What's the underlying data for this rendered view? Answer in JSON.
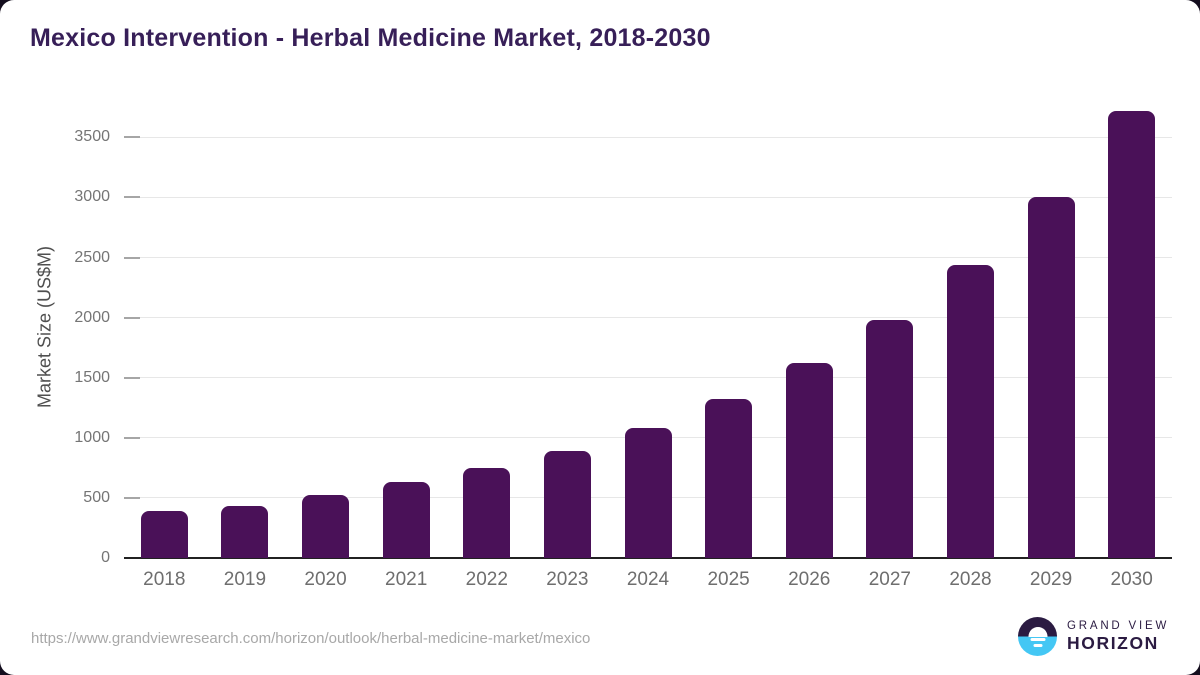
{
  "page": {
    "title": "Mexico Intervention - Herbal Medicine Market, 2018-2030"
  },
  "chart_data": {
    "type": "bar",
    "title": "Mexico Intervention - Herbal Medicine Market, 2018-2030",
    "categories": [
      "2018",
      "2019",
      "2020",
      "2021",
      "2022",
      "2023",
      "2024",
      "2025",
      "2026",
      "2027",
      "2028",
      "2029",
      "2030"
    ],
    "values": [
      390,
      435,
      525,
      630,
      750,
      890,
      1085,
      1320,
      1620,
      1980,
      2440,
      3000,
      3720
    ],
    "xlabel": "",
    "ylabel": "Market Size (US$M)",
    "ylim": [
      0,
      3840
    ],
    "yticks": [
      0,
      500,
      1000,
      1500,
      2000,
      2500,
      3000,
      3500
    ],
    "grid": true,
    "legend": false
  },
  "colors": {
    "bar": "#4a1158",
    "title": "#371f58",
    "gridline": "#e7e7e7",
    "tick": "#a6a6a6",
    "baseline": "#212121",
    "y_label": "#757575",
    "x_label": "#6e6e6e",
    "logo_dark": "#2b1b42",
    "logo_blue": "#44c7f4"
  },
  "footer": {
    "source_url": "https://www.grandviewresearch.com/horizon/outlook/herbal-medicine-market/mexico",
    "logo_top": "GRAND VIEW",
    "logo_bottom": "HORIZON"
  }
}
